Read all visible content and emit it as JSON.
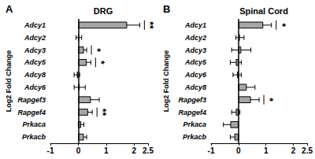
{
  "chart_data": [
    {
      "type": "bar",
      "orientation": "horizontal",
      "panel": "A",
      "title": "DRG",
      "xlabel": "Log2 Fold Change",
      "categories": [
        "Adcy1",
        "Adcy2",
        "Adcy3",
        "Adcy5",
        "Adcy8",
        "Adcy6",
        "Rapgef3",
        "Rapgef4",
        "Prkaca",
        "Prkacb"
      ],
      "values": [
        1.75,
        0.02,
        0.2,
        0.3,
        -0.05,
        0.05,
        0.45,
        0.35,
        0.1,
        0.2
      ],
      "errors": [
        0.45,
        0.1,
        0.1,
        0.15,
        0.1,
        0.2,
        0.3,
        0.15,
        0.1,
        0.1
      ],
      "annotations": [
        {
          "category": "Adcy1",
          "text": "**"
        },
        {
          "category": "Adcy3",
          "text": "*"
        },
        {
          "category": "Adcy5",
          "text": "*"
        },
        {
          "category": "Rapgef4",
          "text": "**"
        }
      ],
      "color": "#a6a6a6",
      "xlim": [
        -1,
        2.5
      ],
      "xticks": [
        -1,
        0,
        1,
        2
      ],
      "grid": false
    },
    {
      "type": "bar",
      "orientation": "horizontal",
      "panel": "B",
      "title": "Spinal Cord",
      "xlabel": "Log2 Fold Change",
      "categories": [
        "Adcy1",
        "Adcy2",
        "Adcy3",
        "Adcy5",
        "Adcy6",
        "Adcy8",
        "Rapgef3",
        "Rapgef4",
        "Prkaca",
        "Prkacb"
      ],
      "values": [
        0.9,
        0.05,
        0.1,
        -0.1,
        -0.05,
        0.3,
        0.45,
        -0.1,
        -0.3,
        -0.15
      ],
      "errors": [
        0.3,
        0.15,
        0.35,
        0.2,
        0.15,
        0.3,
        0.3,
        0.15,
        0.25,
        0.15
      ],
      "annotations": [
        {
          "category": "Adcy1",
          "text": "*"
        },
        {
          "category": "Rapgef3",
          "text": "*"
        }
      ],
      "color": "#a6a6a6",
      "xlim": [
        -1,
        2.5
      ],
      "xticks": [
        -1,
        0,
        1,
        2
      ],
      "grid": false
    }
  ]
}
